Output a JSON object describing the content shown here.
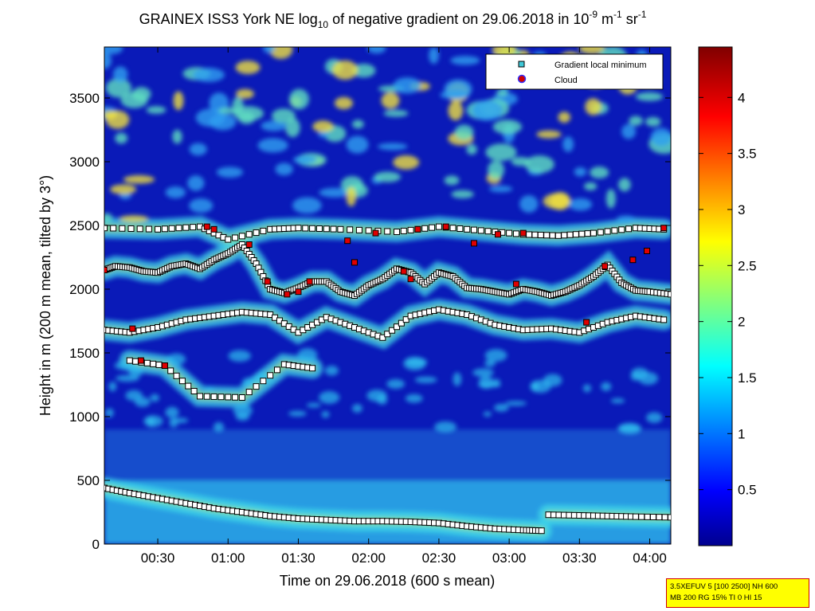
{
  "chart_data": {
    "type": "heatmap",
    "title": {
      "text": "GRAINEX ISS3 York NE log",
      "base_subscript": "10",
      "mid": " of negative gradient on 29.06.2018 in 10",
      "exp1": "-9",
      "unit_m": " m",
      "exp2": "-1",
      "unit_sr": " sr",
      "exp3": "-1"
    },
    "xlabel": "Time on 29.06.2018 (600 s mean)",
    "ylabel": "Height in m (200 m mean, tilted by 3°)",
    "x_unit": "hours",
    "xlim": [
      0.12,
      4.15
    ],
    "ylim": [
      0,
      3900
    ],
    "x_ticks": [
      {
        "value": 0.5,
        "label": "00:30"
      },
      {
        "value": 1.0,
        "label": "01:00"
      },
      {
        "value": 1.5,
        "label": "01:30"
      },
      {
        "value": 2.0,
        "label": "02:00"
      },
      {
        "value": 2.5,
        "label": "02:30"
      },
      {
        "value": 3.0,
        "label": "03:00"
      },
      {
        "value": 3.5,
        "label": "03:30"
      },
      {
        "value": 4.0,
        "label": "04:00"
      }
    ],
    "y_ticks": [
      {
        "value": 0,
        "label": "0"
      },
      {
        "value": 500,
        "label": "500"
      },
      {
        "value": 1000,
        "label": "1000"
      },
      {
        "value": 1500,
        "label": "1500"
      },
      {
        "value": 2000,
        "label": "2000"
      },
      {
        "value": 2500,
        "label": "2500"
      },
      {
        "value": 3000,
        "label": "3000"
      },
      {
        "value": 3500,
        "label": "3500"
      }
    ],
    "colorbar": {
      "range": [
        0,
        4.45
      ],
      "ticks": [
        {
          "value": 0.5,
          "label": "0.5"
        },
        {
          "value": 1.0,
          "label": "1"
        },
        {
          "value": 1.5,
          "label": "1.5"
        },
        {
          "value": 2.0,
          "label": "2"
        },
        {
          "value": 2.5,
          "label": "2.5"
        },
        {
          "value": 3.0,
          "label": "3"
        },
        {
          "value": 3.5,
          "label": "3.5"
        },
        {
          "value": 4.0,
          "label": "4"
        }
      ],
      "colormap": "jet"
    },
    "legend": {
      "position": "top-right",
      "entries": [
        {
          "label": "Gradient local minimum",
          "marker": "square",
          "color": "#40c8d8"
        },
        {
          "label": "Cloud",
          "marker": "circle",
          "color": "#d00000",
          "edge": "#3030ff"
        }
      ]
    },
    "gradient_minimum_layers": [
      {
        "x": [
          0.12,
          0.3,
          0.5,
          0.7,
          0.9,
          1.1,
          1.3,
          1.5,
          1.7,
          1.9,
          2.1,
          2.3,
          2.5,
          2.7,
          2.9,
          3.1,
          3.23
        ],
        "y": [
          440,
          400,
          360,
          320,
          280,
          250,
          220,
          200,
          190,
          180,
          180,
          175,
          165,
          140,
          120,
          110,
          105
        ]
      },
      {
        "x": [
          3.28,
          3.5,
          3.7,
          3.9,
          4.15
        ],
        "y": [
          230,
          225,
          220,
          215,
          210
        ]
      },
      {
        "x": [
          0.12,
          0.2,
          0.3,
          0.4,
          0.5,
          0.6,
          0.7,
          0.8,
          0.9,
          1.0,
          1.1,
          1.2,
          1.3,
          1.4,
          1.5,
          1.6,
          1.7,
          1.8,
          1.9,
          2.0,
          2.1,
          2.2,
          2.3,
          2.4,
          2.5,
          2.6,
          2.7,
          2.8,
          2.9,
          3.0,
          3.1,
          3.2,
          3.3,
          3.4,
          3.5,
          3.6,
          3.7,
          3.8,
          3.9,
          4.0,
          4.15
        ],
        "y": [
          2150,
          2180,
          2170,
          2140,
          2130,
          2180,
          2200,
          2160,
          2230,
          2280,
          2350,
          2200,
          2000,
          1970,
          2010,
          2060,
          2060,
          1980,
          1950,
          2030,
          2080,
          2160,
          2130,
          2040,
          2130,
          2100,
          2010,
          2000,
          1980,
          1960,
          2000,
          1980,
          1950,
          1980,
          2030,
          2100,
          2190,
          2050,
          1990,
          1980,
          1960
        ]
      },
      {
        "x": [
          0.12,
          0.3,
          0.5,
          0.7,
          0.9,
          1.1,
          1.3,
          1.5,
          1.7,
          1.9,
          2.1,
          2.3,
          2.5,
          2.7,
          2.9,
          3.1,
          3.3,
          3.5,
          3.7,
          3.9,
          4.1
        ],
        "y": [
          1680,
          1660,
          1700,
          1760,
          1790,
          1820,
          1800,
          1660,
          1780,
          1700,
          1620,
          1790,
          1840,
          1800,
          1720,
          1680,
          1690,
          1660,
          1740,
          1790,
          1760
        ]
      },
      {
        "x": [
          0.12,
          0.5,
          0.8,
          1.0,
          1.3,
          1.5,
          1.8,
          2.2,
          2.5,
          2.8,
          3.1,
          3.35,
          3.6,
          3.9,
          4.1
        ],
        "y": [
          2480,
          2470,
          2490,
          2390,
          2470,
          2480,
          2470,
          2450,
          2490,
          2460,
          2430,
          2420,
          2440,
          2480,
          2470
        ]
      },
      {
        "x": [
          0.3,
          0.55,
          0.8,
          1.1,
          1.4,
          1.6
        ],
        "y": [
          1440,
          1400,
          1160,
          1150,
          1410,
          1380
        ]
      }
    ],
    "cloud_points": [
      {
        "x": 0.12,
        "y": 2150
      },
      {
        "x": 0.32,
        "y": 1690
      },
      {
        "x": 0.38,
        "y": 1440
      },
      {
        "x": 0.55,
        "y": 1400
      },
      {
        "x": 0.85,
        "y": 2490
      },
      {
        "x": 0.9,
        "y": 2470
      },
      {
        "x": 1.15,
        "y": 2350
      },
      {
        "x": 1.28,
        "y": 2060
      },
      {
        "x": 1.42,
        "y": 1960
      },
      {
        "x": 1.5,
        "y": 1980
      },
      {
        "x": 1.58,
        "y": 2060
      },
      {
        "x": 1.85,
        "y": 2380
      },
      {
        "x": 1.9,
        "y": 2210
      },
      {
        "x": 2.05,
        "y": 2440
      },
      {
        "x": 2.25,
        "y": 2140
      },
      {
        "x": 2.3,
        "y": 2080
      },
      {
        "x": 2.35,
        "y": 2470
      },
      {
        "x": 2.55,
        "y": 2490
      },
      {
        "x": 2.75,
        "y": 2360
      },
      {
        "x": 2.92,
        "y": 2430
      },
      {
        "x": 3.05,
        "y": 2040
      },
      {
        "x": 3.1,
        "y": 2440
      },
      {
        "x": 3.55,
        "y": 1740
      },
      {
        "x": 3.68,
        "y": 2180
      },
      {
        "x": 3.88,
        "y": 2230
      },
      {
        "x": 3.98,
        "y": 2300
      },
      {
        "x": 4.1,
        "y": 2480
      }
    ]
  },
  "info_box": {
    "line1": "3.5XEFUV 5 [100 2500] NH 600",
    "line2": "MB 200 RG 15% TI 0 HI 15"
  }
}
